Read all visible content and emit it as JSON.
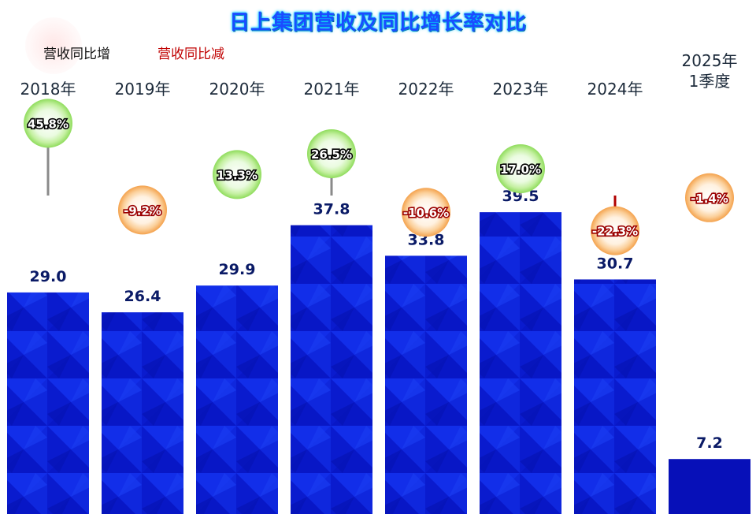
{
  "chart_data": {
    "type": "bar",
    "title": "日上集团营收及同比增长率对比",
    "categories": [
      "2018年",
      "2019年",
      "2020年",
      "2021年",
      "2022年",
      "2023年",
      "2024年",
      "2025年\n1季度"
    ],
    "series": [
      {
        "name": "营收",
        "values": [
          29.0,
          26.4,
          29.9,
          37.8,
          33.8,
          39.5,
          30.7,
          7.2
        ]
      },
      {
        "name": "同比",
        "values": [
          45.8,
          -9.2,
          13.3,
          26.5,
          -10.6,
          17.0,
          -22.3,
          -1.4
        ]
      }
    ],
    "value_labels": [
      "29.0",
      "26.4",
      "29.9",
      "37.8",
      "33.8",
      "39.5",
      "30.7",
      "7.2"
    ],
    "growth_labels": [
      "45.8%",
      "-9.2%",
      "13.3%",
      "26.5%",
      "-10.6%",
      "17.0%",
      "-22.3%",
      "-1.4%"
    ],
    "legend": [
      "营收同比增",
      "营收同比减"
    ],
    "legend_position": "top-left",
    "xlabel": "",
    "ylabel": "",
    "grid": false
  },
  "colors": {
    "bar": "#0d22e0",
    "bar_dark": "#0710b8",
    "value_label": "#0a1a66",
    "increase_text": "#000000",
    "decrease_text": "#c00000",
    "increase_bubble": "#a6e67a",
    "decrease_bubble": "#f7a85a",
    "title": "#1a4cff"
  },
  "icons": {
    "increase": "green-bubble-icon",
    "decrease": "orange-bubble-icon"
  }
}
